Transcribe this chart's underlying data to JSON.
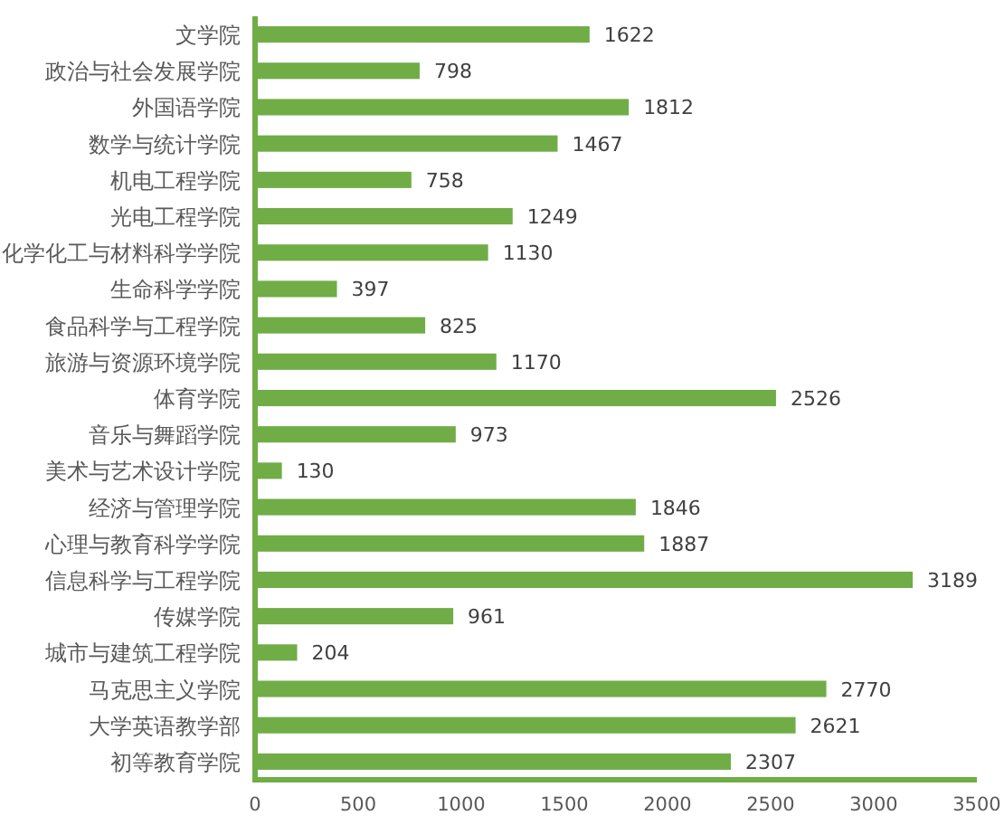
{
  "chart_data": {
    "type": "bar",
    "orientation": "horizontal",
    "categories": [
      "文学院",
      "政治与社会发展学院",
      "外国语学院",
      "数学与统计学院",
      "机电工程学院",
      "光电工程学院",
      "化学化工与材料科学学院",
      "生命科学学院",
      "食品科学与工程学院",
      "旅游与资源环境学院",
      "体育学院",
      "音乐与舞蹈学院",
      "美术与艺术设计学院",
      "经济与管理学院",
      "心理与教育科学学院",
      "信息科学与工程学院",
      "传媒学院",
      "城市与建筑工程学院",
      "马克思主义学院",
      "大学英语教学部",
      "初等教育学院"
    ],
    "values": [
      1622,
      798,
      1812,
      1467,
      758,
      1249,
      1130,
      397,
      825,
      1170,
      2526,
      973,
      130,
      1846,
      1887,
      3189,
      961,
      204,
      2770,
      2621,
      2307
    ],
    "color": "#70ad47",
    "xlim": [
      0,
      3500
    ],
    "xticks": [
      0,
      500,
      1000,
      1500,
      2000,
      2500,
      3000,
      3500
    ],
    "data_labels": true,
    "grid": false
  }
}
